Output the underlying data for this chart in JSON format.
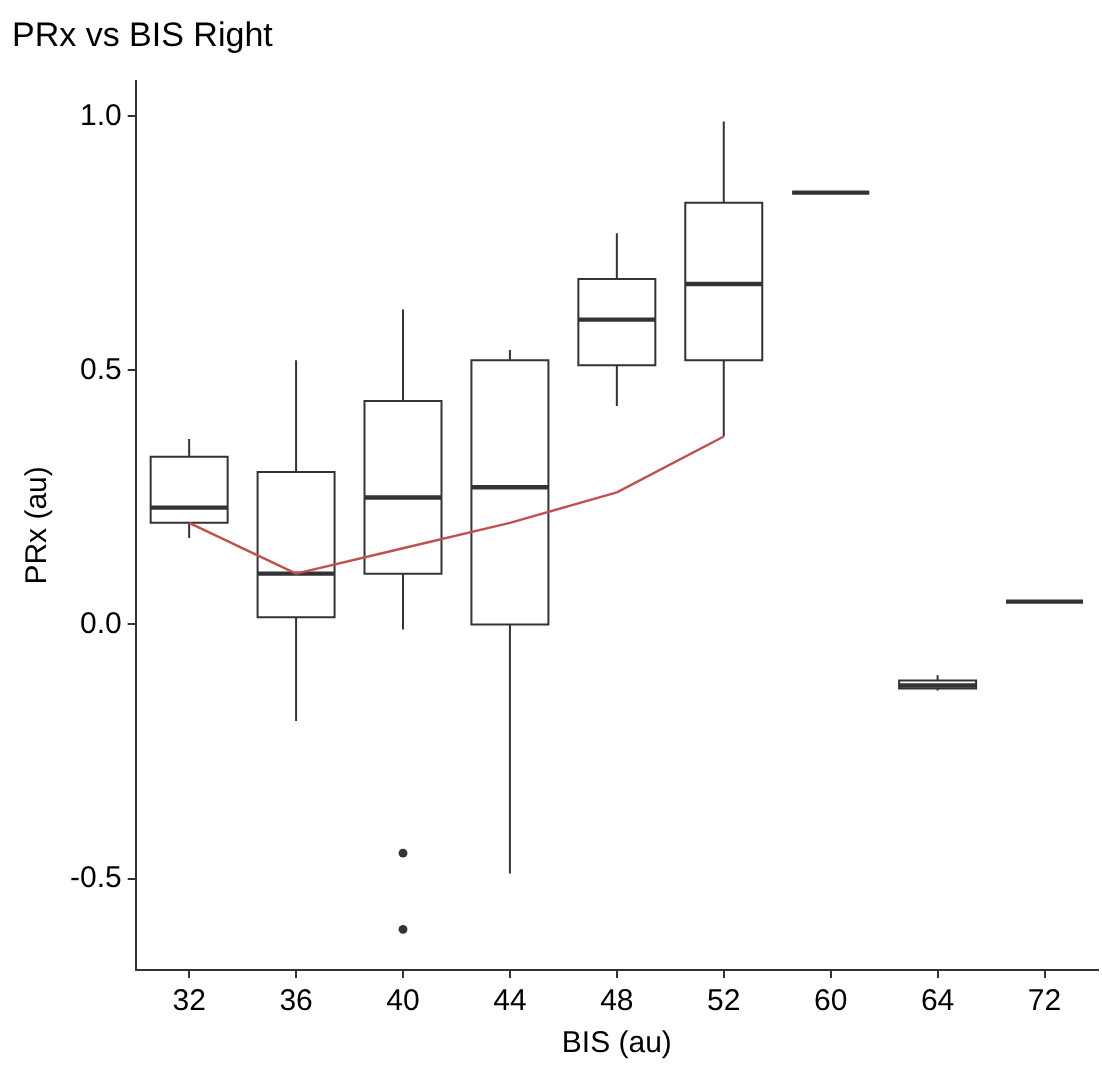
{
  "chart_data": {
    "type": "box",
    "title": "PRx vs BIS Right",
    "xlabel": "BIS (au)",
    "ylabel": "PRx (au)",
    "categories": [
      "32",
      "36",
      "40",
      "44",
      "48",
      "52",
      "60",
      "64",
      "72"
    ],
    "boxes": [
      {
        "low": 0.17,
        "q1": 0.2,
        "median": 0.23,
        "q3": 0.33,
        "high": 0.365
      },
      {
        "low": -0.19,
        "q1": 0.014,
        "median": 0.1,
        "q3": 0.3,
        "high": 0.52
      },
      {
        "low": -0.01,
        "q1": 0.1,
        "median": 0.25,
        "q3": 0.44,
        "high": 0.62,
        "outliers": [
          -0.45,
          -0.6
        ]
      },
      {
        "low": -0.49,
        "q1": 0,
        "median": 0.27,
        "q3": 0.52,
        "high": 0.54
      },
      {
        "low": 0.43,
        "q1": 0.51,
        "median": 0.6,
        "q3": 0.68,
        "high": 0.77
      },
      {
        "low": 0.37,
        "q1": 0.52,
        "median": 0.67,
        "q3": 0.83,
        "high": 0.99
      },
      {
        "low": 0.85,
        "q1": 0.85,
        "median": 0.85,
        "q3": 0.85,
        "high": 0.85
      },
      {
        "low": -0.13,
        "q1": -0.126,
        "median": -0.12,
        "q3": -0.11,
        "high": -0.1
      },
      {
        "low": 0.045,
        "q1": 0.045,
        "median": 0.045,
        "q3": 0.045,
        "high": 0.045
      }
    ],
    "series": [
      {
        "type": "line",
        "color": "#c0504d",
        "values": [
          0.2,
          0.1,
          0.15,
          0.2,
          0.26,
          0.37,
          null,
          null,
          null
        ]
      }
    ],
    "ylim": [
      -0.68,
      1.07
    ],
    "yticks": [
      {
        "value": -0.5,
        "label": "-0.5"
      },
      {
        "value": 0,
        "label": "0.0"
      },
      {
        "value": 0.5,
        "label": "0.5"
      },
      {
        "value": 1,
        "label": "1.0"
      }
    ],
    "color": "#333333",
    "grid": false,
    "legend": false,
    "marker": "none"
  }
}
